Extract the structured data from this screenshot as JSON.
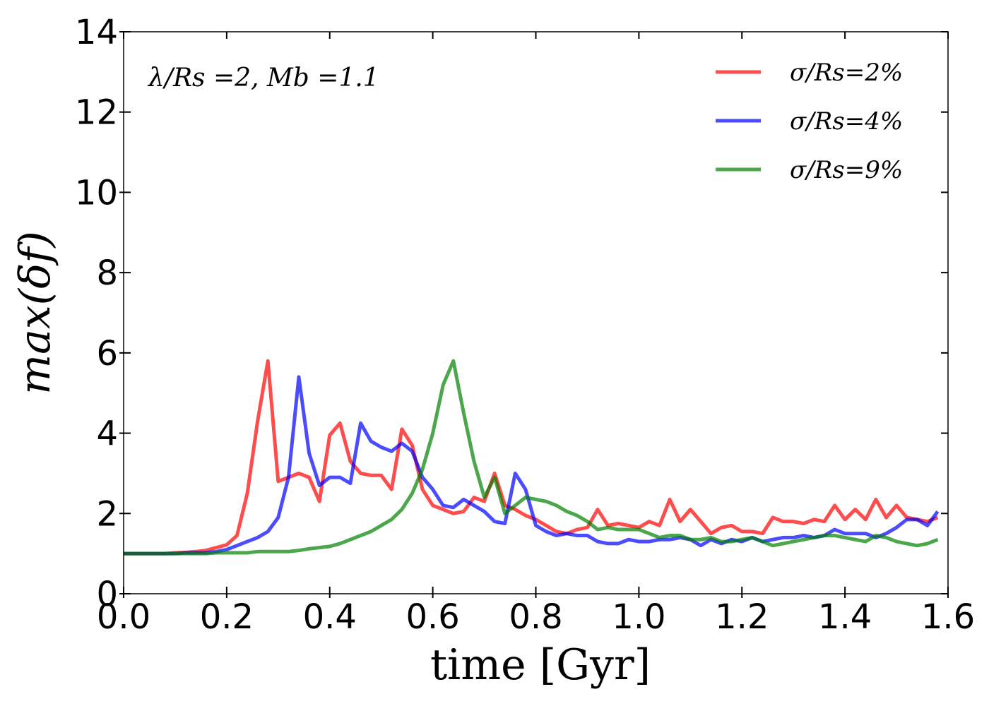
{
  "chart_data": {
    "type": "line",
    "annotation": "λ/Rs =2, Mb =1.1",
    "xlabel": "time   [Gyr]",
    "ylabel": "max(δf)",
    "x": [
      0,
      0.02,
      0.04,
      0.06,
      0.08,
      0.1,
      0.12,
      0.14,
      0.16,
      0.18,
      0.2,
      0.22,
      0.24,
      0.26,
      0.28,
      0.3,
      0.32,
      0.34,
      0.36,
      0.38,
      0.4,
      0.42,
      0.44,
      0.46,
      0.48,
      0.5,
      0.52,
      0.54,
      0.56,
      0.58,
      0.6,
      0.62,
      0.64,
      0.66,
      0.68,
      0.7,
      0.72,
      0.74,
      0.76,
      0.78,
      0.8,
      0.82,
      0.84,
      0.86,
      0.88,
      0.9,
      0.92,
      0.94,
      0.96,
      0.98,
      1.0,
      1.02,
      1.04,
      1.06,
      1.08,
      1.1,
      1.12,
      1.14,
      1.16,
      1.18,
      1.2,
      1.22,
      1.24,
      1.26,
      1.28,
      1.3,
      1.32,
      1.34,
      1.36,
      1.38,
      1.4,
      1.42,
      1.44,
      1.46,
      1.48,
      1.5,
      1.52,
      1.54,
      1.56,
      1.58
    ],
    "series": [
      {
        "name": "σ/Rs=2%",
        "color": "#ff0000",
        "values": [
          1,
          1,
          1,
          1,
          1,
          1.02,
          1.03,
          1.05,
          1.08,
          1.15,
          1.22,
          1.45,
          2.5,
          4.3,
          5.8,
          2.8,
          2.9,
          3.0,
          2.9,
          2.3,
          3.95,
          4.25,
          3.3,
          3.0,
          2.95,
          2.95,
          2.6,
          4.1,
          3.7,
          2.6,
          2.2,
          2.1,
          2.0,
          2.05,
          2.4,
          2.3,
          3.0,
          2.2,
          2.1,
          1.95,
          1.85,
          1.7,
          1.55,
          1.5,
          1.6,
          1.65,
          2.1,
          1.7,
          1.75,
          1.7,
          1.65,
          1.8,
          1.7,
          2.35,
          1.8,
          2.1,
          1.8,
          1.5,
          1.65,
          1.7,
          1.55,
          1.55,
          1.5,
          1.9,
          1.8,
          1.8,
          1.75,
          1.85,
          1.8,
          2.2,
          1.85,
          2.1,
          1.85,
          2.35,
          1.9,
          2.2,
          1.9,
          1.85,
          1.8,
          1.9
        ]
      },
      {
        "name": "σ/Rs=4%",
        "color": "#0000ff",
        "values": [
          1,
          1,
          1,
          1,
          1,
          1,
          1.02,
          1.02,
          1.02,
          1.05,
          1.1,
          1.2,
          1.3,
          1.4,
          1.55,
          1.9,
          2.9,
          5.4,
          3.5,
          2.7,
          2.9,
          2.9,
          2.75,
          4.25,
          3.8,
          3.65,
          3.55,
          3.75,
          3.55,
          2.9,
          2.6,
          2.2,
          2.15,
          2.35,
          2.2,
          2.05,
          1.8,
          1.75,
          3.0,
          2.6,
          1.7,
          1.55,
          1.45,
          1.5,
          1.45,
          1.45,
          1.3,
          1.25,
          1.25,
          1.35,
          1.3,
          1.3,
          1.35,
          1.35,
          1.4,
          1.35,
          1.2,
          1.35,
          1.25,
          1.35,
          1.3,
          1.4,
          1.3,
          1.35,
          1.4,
          1.4,
          1.45,
          1.4,
          1.45,
          1.6,
          1.5,
          1.5,
          1.5,
          1.4,
          1.5,
          1.65,
          1.85,
          1.85,
          1.7,
          2.05
        ]
      },
      {
        "name": "σ/Rs=9%",
        "color": "#008000",
        "values": [
          1,
          1,
          1,
          1,
          1,
          1,
          1,
          1,
          1,
          1.02,
          1.02,
          1.02,
          1.02,
          1.05,
          1.05,
          1.05,
          1.05,
          1.08,
          1.12,
          1.15,
          1.18,
          1.25,
          1.35,
          1.45,
          1.55,
          1.7,
          1.85,
          2.1,
          2.5,
          3.1,
          4.0,
          5.2,
          5.8,
          4.5,
          3.3,
          2.4,
          2.9,
          2.0,
          2.2,
          2.4,
          2.35,
          2.3,
          2.2,
          2.05,
          1.95,
          1.8,
          1.6,
          1.65,
          1.6,
          1.6,
          1.6,
          1.5,
          1.4,
          1.45,
          1.45,
          1.35,
          1.35,
          1.4,
          1.3,
          1.3,
          1.35,
          1.4,
          1.3,
          1.2,
          1.25,
          1.3,
          1.35,
          1.4,
          1.45,
          1.45,
          1.4,
          1.35,
          1.3,
          1.45,
          1.4,
          1.3,
          1.25,
          1.2,
          1.25,
          1.35
        ]
      }
    ],
    "xlim": [
      0,
      1.6
    ],
    "xticks": [
      {
        "value": 0,
        "label": "0.0"
      },
      0.2,
      0.4,
      0.6,
      0.8,
      {
        "value": 1,
        "label": "1.0"
      },
      1.2,
      1.4,
      1.6
    ],
    "ylim": [
      0,
      14
    ],
    "yticks": [
      0,
      2,
      4,
      6,
      8,
      10,
      12,
      14
    ],
    "legend": "upper right"
  }
}
